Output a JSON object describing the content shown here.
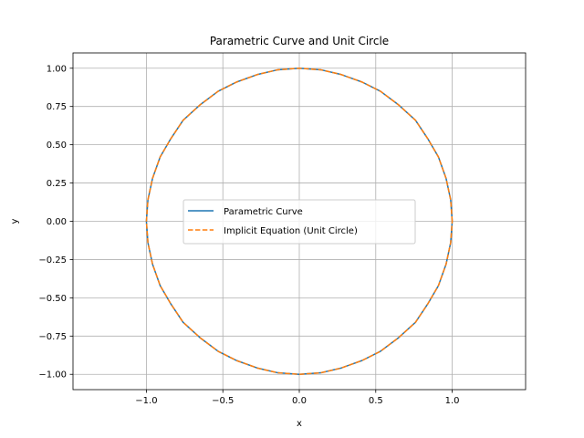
{
  "chart_data": {
    "type": "line",
    "title": "Parametric Curve and Unit Circle",
    "xlabel": "x",
    "ylabel": "y",
    "xlim": [
      -1.48,
      1.48
    ],
    "ylim": [
      -1.1,
      1.1
    ],
    "xticks": [
      -1.0,
      -0.5,
      0.0,
      0.5,
      1.0
    ],
    "xtick_labels": [
      "−1.0",
      "−0.5",
      "0.0",
      "0.5",
      "1.0"
    ],
    "yticks": [
      -1.0,
      -0.75,
      -0.5,
      -0.25,
      0.0,
      0.25,
      0.5,
      0.75,
      1.0
    ],
    "ytick_labels": [
      "−1.00",
      "−0.75",
      "−0.50",
      "−0.25",
      "0.00",
      "0.25",
      "0.50",
      "0.75",
      "1.00"
    ],
    "grid": true,
    "legend_position": "center",
    "series": [
      {
        "name": "Parametric Curve",
        "color": "#1f77b4",
        "style": "solid",
        "x": [
          1.0,
          0.99,
          0.96,
          0.91,
          0.84,
          0.76,
          0.65,
          0.53,
          0.41,
          0.27,
          0.14,
          0.0,
          -0.14,
          -0.27,
          -0.41,
          -0.53,
          -0.65,
          -0.76,
          -0.84,
          -0.91,
          -0.96,
          -0.99,
          -1.0,
          -0.99,
          -0.96,
          -0.91,
          -0.84,
          -0.76,
          -0.65,
          -0.53,
          -0.41,
          -0.27,
          -0.14,
          0.0,
          0.14,
          0.27,
          0.41,
          0.53,
          0.65,
          0.76,
          0.84,
          0.91,
          0.96,
          0.99,
          1.0
        ],
        "y": [
          0.0,
          0.14,
          0.28,
          0.42,
          0.54,
          0.66,
          0.76,
          0.85,
          0.91,
          0.96,
          0.99,
          1.0,
          0.99,
          0.96,
          0.91,
          0.85,
          0.76,
          0.66,
          0.54,
          0.42,
          0.28,
          0.14,
          0.0,
          -0.14,
          -0.28,
          -0.42,
          -0.54,
          -0.66,
          -0.76,
          -0.85,
          -0.91,
          -0.96,
          -0.99,
          -1.0,
          -0.99,
          -0.96,
          -0.91,
          -0.85,
          -0.76,
          -0.66,
          -0.54,
          -0.42,
          -0.28,
          -0.14,
          0.0
        ]
      },
      {
        "name": "Implicit Equation (Unit Circle)",
        "color": "#ff7f0e",
        "style": "dashed",
        "x": [
          1.0,
          0.99,
          0.96,
          0.91,
          0.84,
          0.76,
          0.65,
          0.53,
          0.41,
          0.27,
          0.14,
          0.0,
          -0.14,
          -0.27,
          -0.41,
          -0.53,
          -0.65,
          -0.76,
          -0.84,
          -0.91,
          -0.96,
          -0.99,
          -1.0,
          -0.99,
          -0.96,
          -0.91,
          -0.84,
          -0.76,
          -0.65,
          -0.53,
          -0.41,
          -0.27,
          -0.14,
          0.0,
          0.14,
          0.27,
          0.41,
          0.53,
          0.65,
          0.76,
          0.84,
          0.91,
          0.96,
          0.99,
          1.0
        ],
        "y": [
          0.0,
          0.14,
          0.28,
          0.42,
          0.54,
          0.66,
          0.76,
          0.85,
          0.91,
          0.96,
          0.99,
          1.0,
          0.99,
          0.96,
          0.91,
          0.85,
          0.76,
          0.66,
          0.54,
          0.42,
          0.28,
          0.14,
          0.0,
          -0.14,
          -0.28,
          -0.42,
          -0.54,
          -0.66,
          -0.76,
          -0.85,
          -0.91,
          -0.96,
          -0.99,
          -1.0,
          -0.99,
          -0.96,
          -0.91,
          -0.85,
          -0.76,
          -0.66,
          -0.54,
          -0.42,
          -0.28,
          -0.14,
          0.0
        ]
      }
    ]
  }
}
